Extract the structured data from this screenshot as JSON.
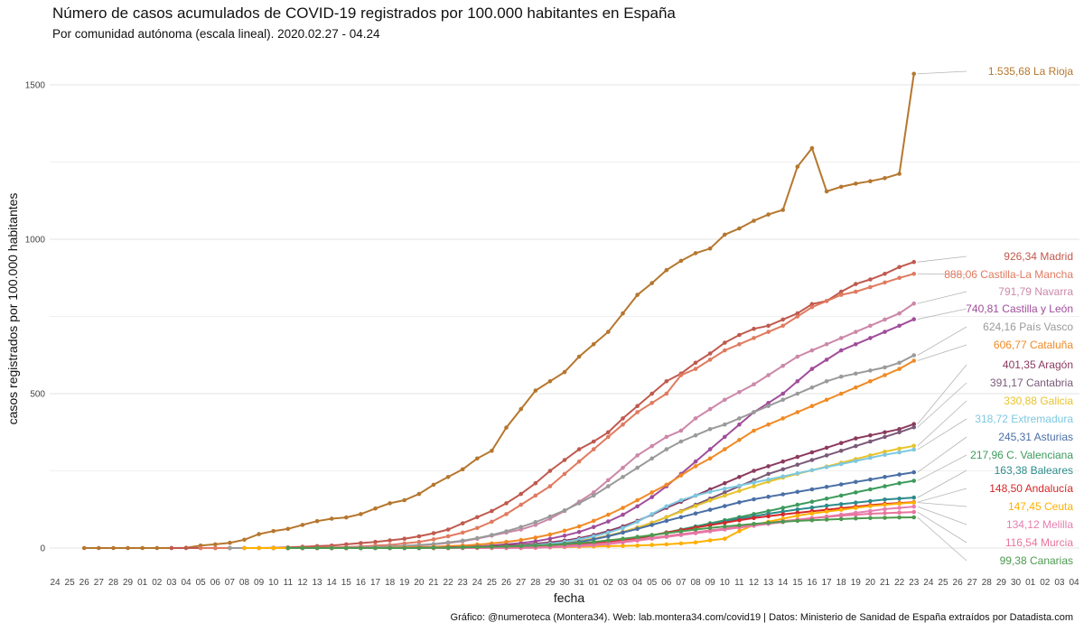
{
  "title": "Número de casos acumulados de COVID-19 registrados por 100.000 habitantes en España",
  "subtitle": "Por comunidad autónoma (escala lineal). 2020.02.27 - 04.24",
  "caption": "Gráfico: @numeroteca (Montera34). Web: lab.montera34.com/covid19 | Datos: Ministerio de Sanidad de España extraídos por Datadista.com",
  "chart_data": {
    "type": "line",
    "xlabel": "fecha",
    "ylabel": "casos registrados por 100.000 habitantes",
    "ylim": [
      -75,
      1600
    ],
    "yticks": [
      0,
      500,
      1000,
      1500
    ],
    "ytick_labels": [
      "0",
      "500",
      "1000",
      "1500"
    ],
    "x_tick_labels": [
      "24",
      "25",
      "26",
      "27",
      "28",
      "29",
      "01",
      "02",
      "03",
      "04",
      "05",
      "06",
      "07",
      "08",
      "09",
      "10",
      "11",
      "12",
      "13",
      "14",
      "15",
      "16",
      "17",
      "18",
      "19",
      "20",
      "21",
      "22",
      "23",
      "24",
      "25",
      "26",
      "27",
      "28",
      "29",
      "30",
      "31",
      "01",
      "02",
      "03",
      "04",
      "05",
      "06",
      "07",
      "08",
      "09",
      "10",
      "11",
      "12",
      "13",
      "14",
      "15",
      "16",
      "17",
      "18",
      "19",
      "20",
      "21",
      "22",
      "23",
      "24",
      "25",
      "26",
      "27",
      "28",
      "29",
      "30",
      "01",
      "02",
      "03",
      "04"
    ],
    "x_start_index": 3,
    "grid": true,
    "series": [
      {
        "name": "La Rioja",
        "label": "1.535,68 La Rioja",
        "color": "#b5772e",
        "values": [
          0,
          0,
          0,
          0,
          0,
          0,
          0,
          1,
          8,
          12,
          17,
          27,
          45,
          55,
          62,
          75,
          87,
          95,
          99,
          110,
          128,
          145,
          155,
          175,
          205,
          230,
          255,
          290,
          315,
          390,
          450,
          510,
          540,
          570,
          620,
          660,
          700,
          760,
          820,
          858,
          900,
          930,
          955,
          970,
          1015,
          1035,
          1060,
          1080,
          1095,
          1235,
          1295,
          1155,
          1170,
          1180,
          1188,
          1198,
          1212,
          1535.68
        ]
      },
      {
        "name": "Madrid",
        "label": "926,34 Madrid",
        "color": "#c0594e",
        "values": [
          0,
          0,
          0,
          0,
          0,
          0,
          0,
          1,
          2,
          4,
          6,
          8,
          12,
          16,
          20,
          25,
          30,
          38,
          48,
          60,
          80,
          100,
          120,
          145,
          175,
          210,
          250,
          285,
          320,
          345,
          375,
          420,
          460,
          500,
          540,
          565,
          600,
          630,
          665,
          690,
          710,
          720,
          740,
          760,
          790,
          800,
          830,
          855,
          870,
          888,
          910,
          926.34
        ]
      },
      {
        "name": "Castilla-La Mancha",
        "label": "888,06 Castilla-La Mancha",
        "color": "#e07a5f",
        "values": [
          0,
          0,
          0,
          0,
          0,
          0,
          0,
          0,
          1,
          2,
          3,
          5,
          8,
          10,
          15,
          20,
          28,
          38,
          50,
          65,
          85,
          110,
          140,
          170,
          200,
          240,
          280,
          320,
          360,
          400,
          440,
          470,
          500,
          560,
          580,
          610,
          640,
          660,
          680,
          700,
          720,
          750,
          780,
          800,
          820,
          830,
          845,
          860,
          875,
          888.06
        ]
      },
      {
        "name": "Navarra",
        "label": "791,79 Navarra",
        "color": "#cc88a8",
        "values": [
          0,
          0,
          0,
          0,
          0,
          0,
          0,
          0,
          1,
          2,
          3,
          5,
          8,
          12,
          16,
          22,
          30,
          40,
          50,
          60,
          75,
          95,
          120,
          150,
          180,
          220,
          260,
          300,
          330,
          360,
          380,
          420,
          450,
          480,
          505,
          530,
          560,
          590,
          620,
          640,
          660,
          680,
          700,
          720,
          740,
          760,
          791.79
        ]
      },
      {
        "name": "Castilla y León",
        "label": "740,81 Castilla y León",
        "color": "#a04d9a",
        "values": [
          0,
          0,
          0,
          0,
          0,
          0,
          0,
          0,
          0,
          1,
          2,
          3,
          5,
          8,
          12,
          16,
          22,
          30,
          40,
          52,
          68,
          86,
          108,
          135,
          165,
          200,
          240,
          280,
          320,
          360,
          400,
          440,
          470,
          500,
          540,
          580,
          610,
          640,
          660,
          680,
          700,
          720,
          740.81
        ]
      },
      {
        "name": "País Vasco",
        "label": "624,16 País Vasco",
        "color": "#9a9a9a",
        "values": [
          0,
          0,
          0,
          0,
          0,
          0,
          0,
          0,
          1,
          2,
          3,
          5,
          7,
          10,
          13,
          18,
          24,
          32,
          42,
          54,
          68,
          84,
          102,
          122,
          145,
          170,
          200,
          230,
          260,
          290,
          320,
          345,
          365,
          385,
          400,
          420,
          440,
          460,
          480,
          500,
          520,
          540,
          555,
          565,
          575,
          585,
          600,
          624.16
        ]
      },
      {
        "name": "Cataluña",
        "label": "606,77 Cataluña",
        "color": "#f08a24",
        "values": [
          0,
          0,
          0,
          0,
          0,
          0,
          0,
          0,
          1,
          2,
          3,
          4,
          6,
          8,
          11,
          15,
          20,
          26,
          34,
          44,
          56,
          70,
          88,
          108,
          130,
          155,
          180,
          205,
          235,
          265,
          290,
          320,
          350,
          380,
          400,
          420,
          440,
          460,
          480,
          500,
          520,
          540,
          560,
          580,
          606.77
        ]
      },
      {
        "name": "Aragón",
        "label": "401,35 Aragón",
        "color": "#8b3a5e",
        "values": [
          0,
          0,
          0,
          0,
          0,
          0,
          0,
          0,
          0,
          1,
          1,
          2,
          3,
          4,
          6,
          8,
          10,
          14,
          18,
          24,
          32,
          42,
          55,
          70,
          88,
          108,
          130,
          150,
          170,
          190,
          210,
          230,
          250,
          265,
          280,
          295,
          310,
          325,
          340,
          355,
          365,
          375,
          385,
          401.35
        ]
      },
      {
        "name": "Cantabria",
        "label": "391,17 Cantabria",
        "color": "#7a5a78",
        "values": [
          0,
          0,
          0,
          0,
          0,
          0,
          0,
          0,
          0,
          1,
          1,
          2,
          3,
          4,
          5,
          7,
          9,
          12,
          16,
          22,
          30,
          40,
          52,
          66,
          82,
          100,
          120,
          140,
          160,
          180,
          200,
          220,
          240,
          255,
          270,
          285,
          300,
          315,
          330,
          345,
          360,
          375,
          391.17
        ]
      },
      {
        "name": "Galicia",
        "label": "330,88 Galicia",
        "color": "#e8c32a",
        "values": [
          0,
          0,
          0,
          0,
          0,
          0,
          0,
          0,
          0,
          0,
          1,
          1,
          2,
          3,
          4,
          5,
          7,
          9,
          12,
          16,
          22,
          30,
          40,
          52,
          66,
          82,
          100,
          118,
          136,
          154,
          170,
          185,
          200,
          215,
          228,
          240,
          252,
          264,
          276,
          288,
          300,
          312,
          322,
          330.88
        ]
      },
      {
        "name": "Extremadura",
        "label": "318,72 Extremadura",
        "color": "#7ec8e0",
        "values": [
          0,
          0,
          0,
          0,
          0,
          0,
          0,
          0,
          0,
          0,
          0,
          1,
          1,
          2,
          3,
          4,
          5,
          7,
          10,
          14,
          20,
          28,
          38,
          50,
          65,
          85,
          110,
          135,
          155,
          170,
          182,
          192,
          202,
          212,
          222,
          232,
          242,
          252,
          262,
          272,
          282,
          292,
          302,
          310,
          318.72
        ]
      },
      {
        "name": "Asturias",
        "label": "245,31 Asturias",
        "color": "#4a6fa5",
        "values": [
          0,
          0,
          0,
          0,
          0,
          0,
          0,
          0,
          0,
          0,
          0,
          1,
          1,
          2,
          2,
          3,
          4,
          5,
          7,
          10,
          14,
          20,
          28,
          38,
          50,
          62,
          75,
          88,
          100,
          112,
          124,
          136,
          148,
          158,
          166,
          174,
          182,
          190,
          198,
          206,
          214,
          222,
          230,
          238,
          245.31
        ]
      },
      {
        "name": "C. Valenciana",
        "label": "217,96 C. Valenciana",
        "color": "#3d9a5c",
        "values": [
          0,
          0,
          0,
          0,
          0,
          0,
          0,
          0,
          0,
          0,
          1,
          1,
          2,
          3,
          4,
          5,
          7,
          9,
          12,
          16,
          22,
          30,
          40,
          50,
          60,
          70,
          80,
          90,
          100,
          110,
          120,
          130,
          140,
          150,
          160,
          170,
          180,
          190,
          200,
          210,
          217.96
        ]
      },
      {
        "name": "Baleares",
        "label": "163,38 Baleares",
        "color": "#2e8b8b",
        "values": [
          0,
          0,
          0,
          0,
          0,
          0,
          0,
          0,
          0,
          0,
          0,
          1,
          1,
          2,
          3,
          4,
          5,
          6,
          8,
          11,
          15,
          20,
          26,
          33,
          41,
          50,
          59,
          68,
          77,
          86,
          95,
          103,
          111,
          118,
          125,
          131,
          137,
          142,
          147,
          152,
          157,
          160,
          163.38
        ]
      },
      {
        "name": "Andalucía",
        "label": "148,50 Andalucía",
        "color": "#d62728",
        "values": [
          0,
          0,
          0,
          0,
          0,
          0,
          0,
          0,
          0,
          0,
          0,
          1,
          1,
          2,
          2,
          3,
          4,
          5,
          6,
          8,
          11,
          15,
          20,
          26,
          33,
          41,
          50,
          58,
          66,
          74,
          82,
          90,
          97,
          103,
          109,
          114,
          119,
          124,
          129,
          134,
          139,
          143,
          146,
          148.5
        ]
      },
      {
        "name": "Ceuta",
        "label": "147,45 Ceuta",
        "color": "#ffb000",
        "values": [
          0,
          0,
          0,
          0,
          0,
          0,
          0,
          0,
          0,
          0,
          0,
          0,
          0,
          0,
          0,
          0,
          0,
          0,
          0,
          0,
          1,
          2,
          3,
          4,
          5,
          6,
          7,
          8,
          10,
          12,
          15,
          18,
          25,
          30,
          55,
          75,
          85,
          95,
          105,
          112,
          118,
          124,
          130,
          136,
          140,
          144,
          147.45
        ]
      },
      {
        "name": "Melilla",
        "label": "134,12 Melilla",
        "color": "#e67fb0",
        "values": [
          0,
          0,
          0,
          0,
          0,
          0,
          0,
          0,
          0,
          0,
          0,
          0,
          0,
          0,
          0,
          0,
          0,
          1,
          2,
          4,
          6,
          9,
          13,
          18,
          24,
          30,
          36,
          42,
          48,
          54,
          60,
          66,
          72,
          78,
          84,
          90,
          96,
          102,
          108,
          114,
          120,
          126,
          130,
          134.12
        ]
      },
      {
        "name": "Murcia",
        "label": "116,54 Murcia",
        "color": "#e8749e",
        "values": [
          0,
          0,
          0,
          0,
          0,
          0,
          0,
          0,
          0,
          0,
          0,
          0,
          1,
          1,
          2,
          3,
          4,
          5,
          7,
          9,
          12,
          16,
          21,
          27,
          33,
          39,
          45,
          51,
          57,
          63,
          69,
          75,
          81,
          87,
          92,
          97,
          101,
          105,
          108,
          111,
          113,
          115,
          116.54
        ]
      },
      {
        "name": "Canarias",
        "label": "99,38 Canarias",
        "color": "#4c9a4f",
        "values": [
          0,
          0,
          0,
          0,
          0,
          0,
          0,
          0,
          0,
          0,
          1,
          1,
          2,
          3,
          4,
          5,
          6,
          8,
          10,
          13,
          16,
          20,
          25,
          30,
          36,
          42,
          48,
          54,
          60,
          65,
          70,
          74,
          78,
          82,
          85,
          88,
          90,
          92,
          94,
          96,
          97,
          98,
          99,
          99.38
        ]
      }
    ]
  }
}
